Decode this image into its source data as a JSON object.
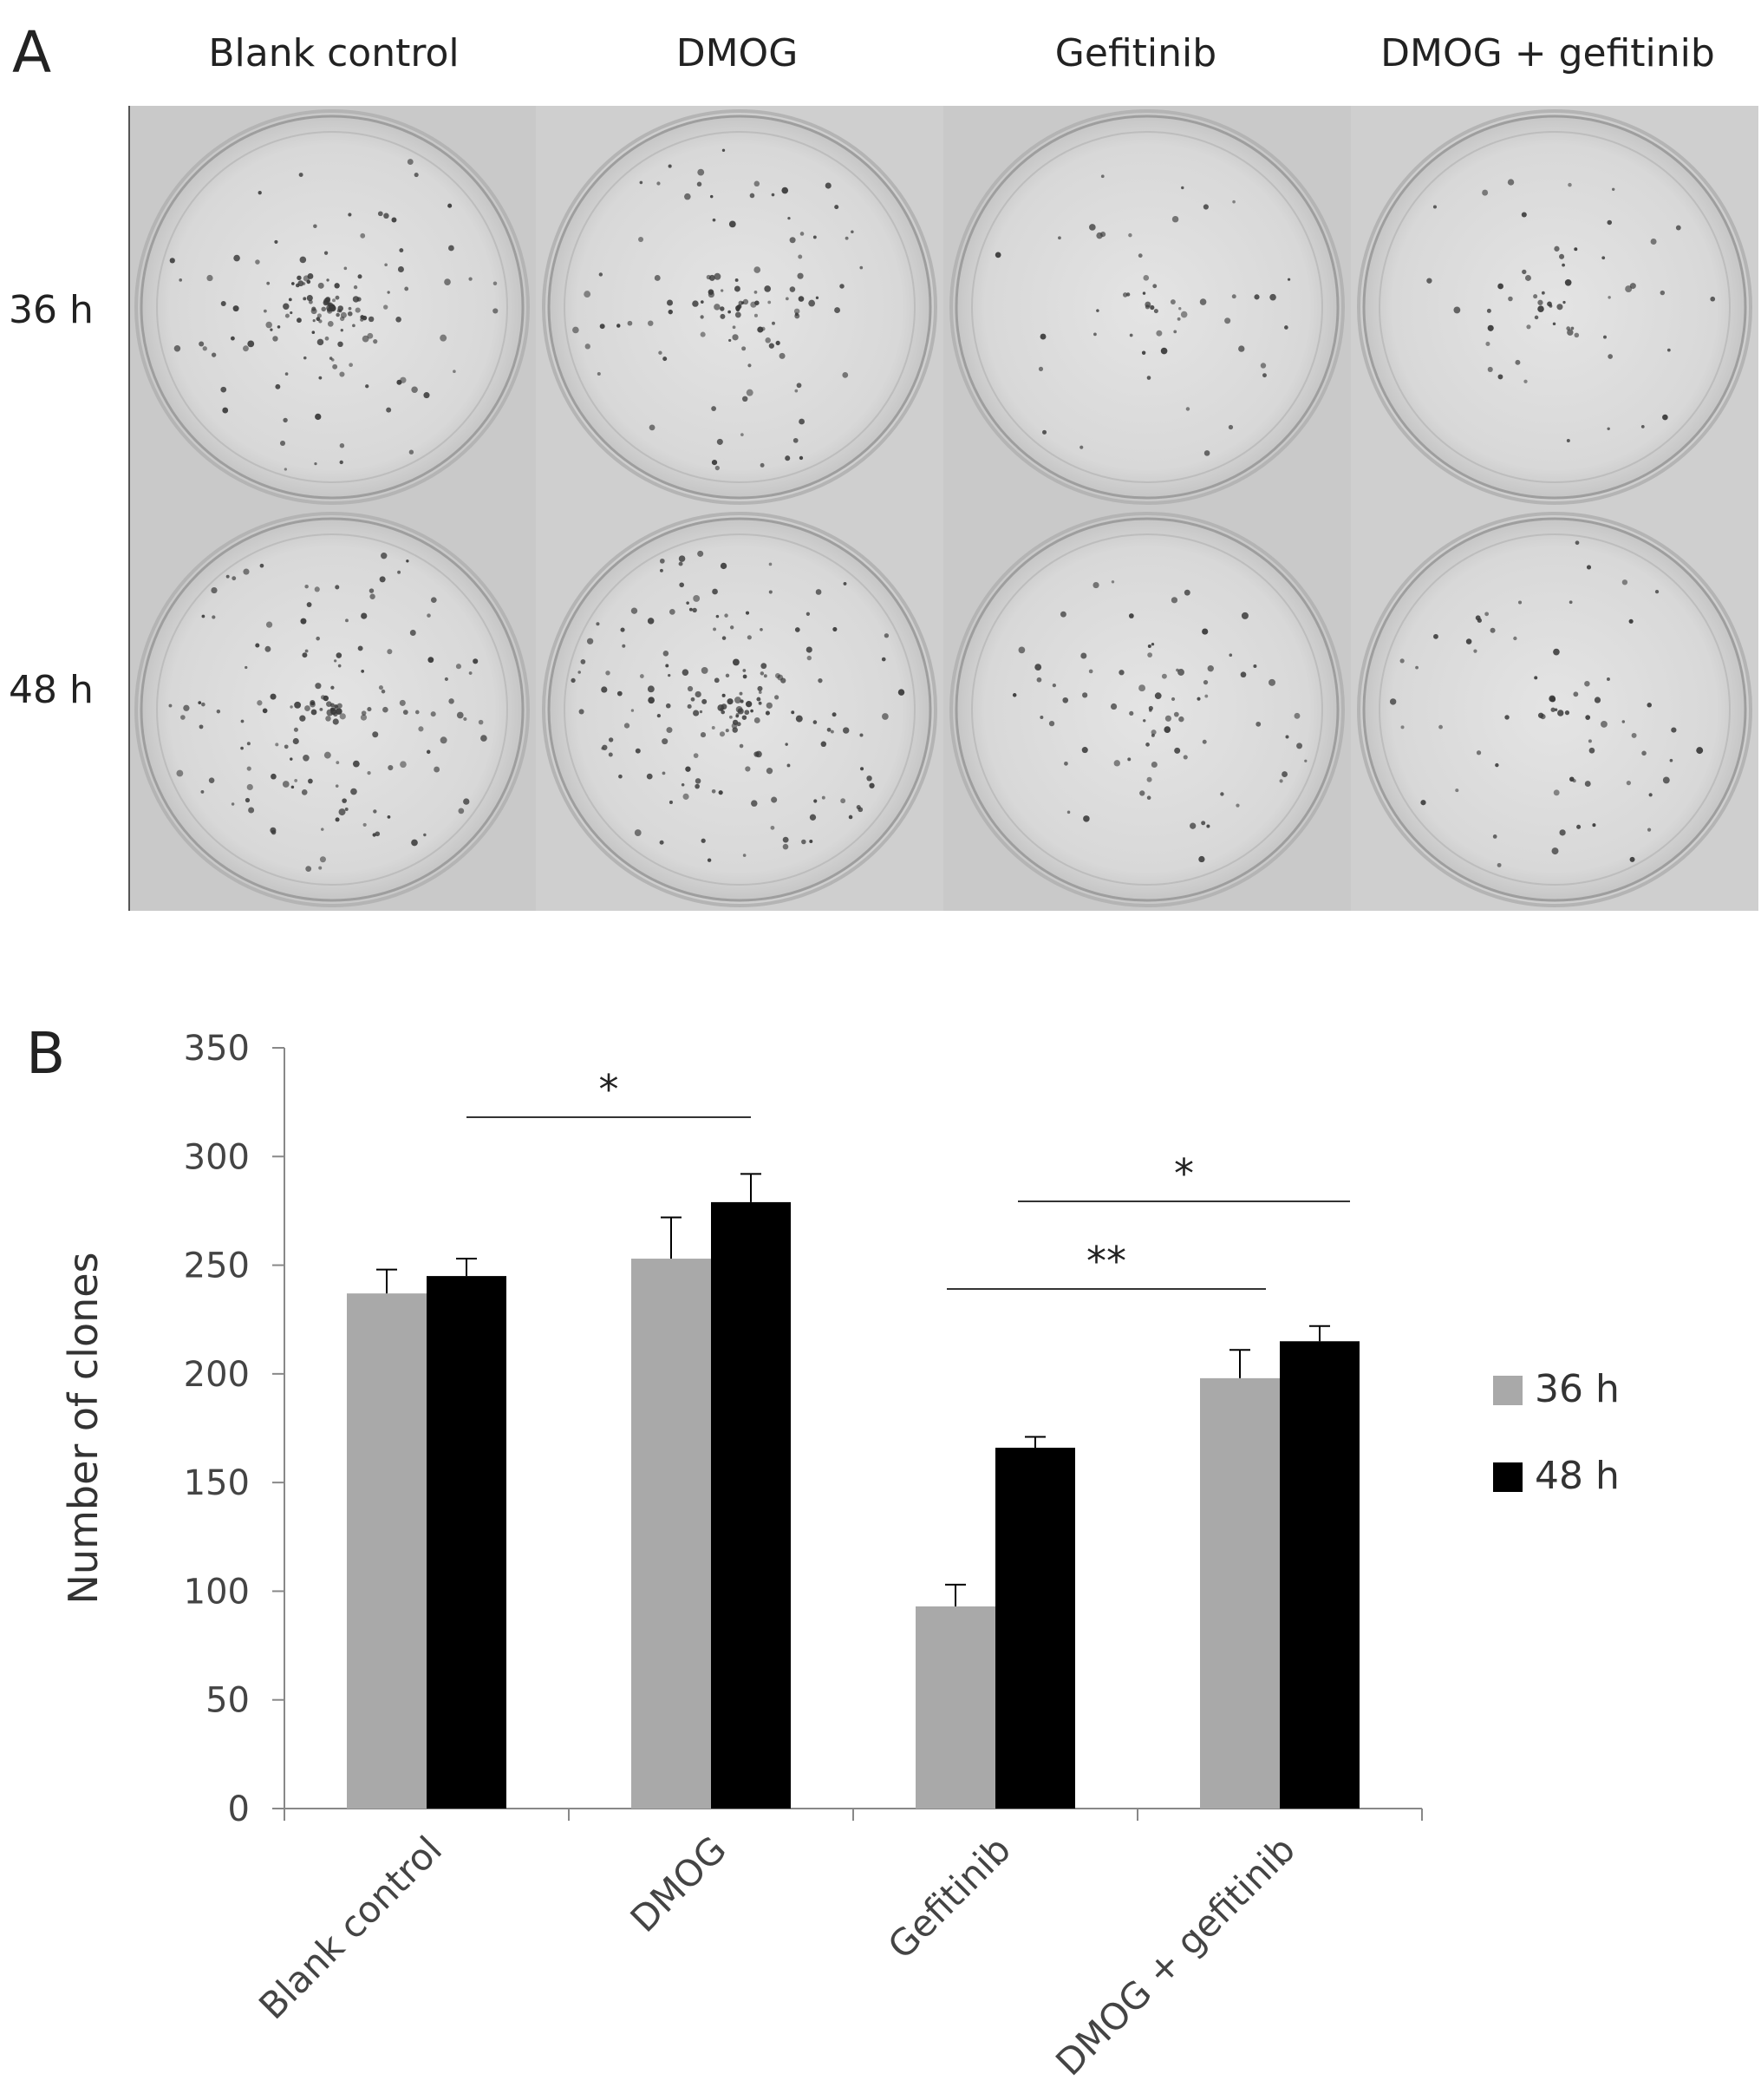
{
  "panels": {
    "a_label": "A",
    "b_label": "B"
  },
  "photo_grid": {
    "columns": [
      "Blank control",
      "DMOG",
      "Gefitinib",
      "DMOG + gefitinib"
    ],
    "rows": [
      "36 h",
      "48 h"
    ]
  },
  "chart_data": {
    "type": "bar",
    "categories": [
      "Blank control",
      "DMOG",
      "Gefitinib",
      "DMOG + gefitinib"
    ],
    "series": [
      {
        "name": "36 h",
        "values": [
          237,
          253,
          93,
          198
        ],
        "errors": [
          11,
          19,
          10,
          13
        ],
        "color": "#a9a9a9"
      },
      {
        "name": "48 h",
        "values": [
          245,
          279,
          166,
          215
        ],
        "errors": [
          8,
          13,
          5,
          7
        ],
        "color": "#000000"
      }
    ],
    "ylabel": "Number of clones",
    "ylim": [
      0,
      350
    ],
    "yticks": [
      0,
      50,
      100,
      150,
      200,
      250,
      300,
      350
    ],
    "grid": false,
    "legend": "right",
    "significance": [
      {
        "label": "*",
        "from": "Blank control",
        "to": "DMOG"
      },
      {
        "label": "**",
        "from": "Gefitinib",
        "to": "DMOG + gefitinib"
      },
      {
        "label": "*",
        "from": "Gefitinib",
        "to": "DMOG + gefitinib"
      }
    ]
  }
}
